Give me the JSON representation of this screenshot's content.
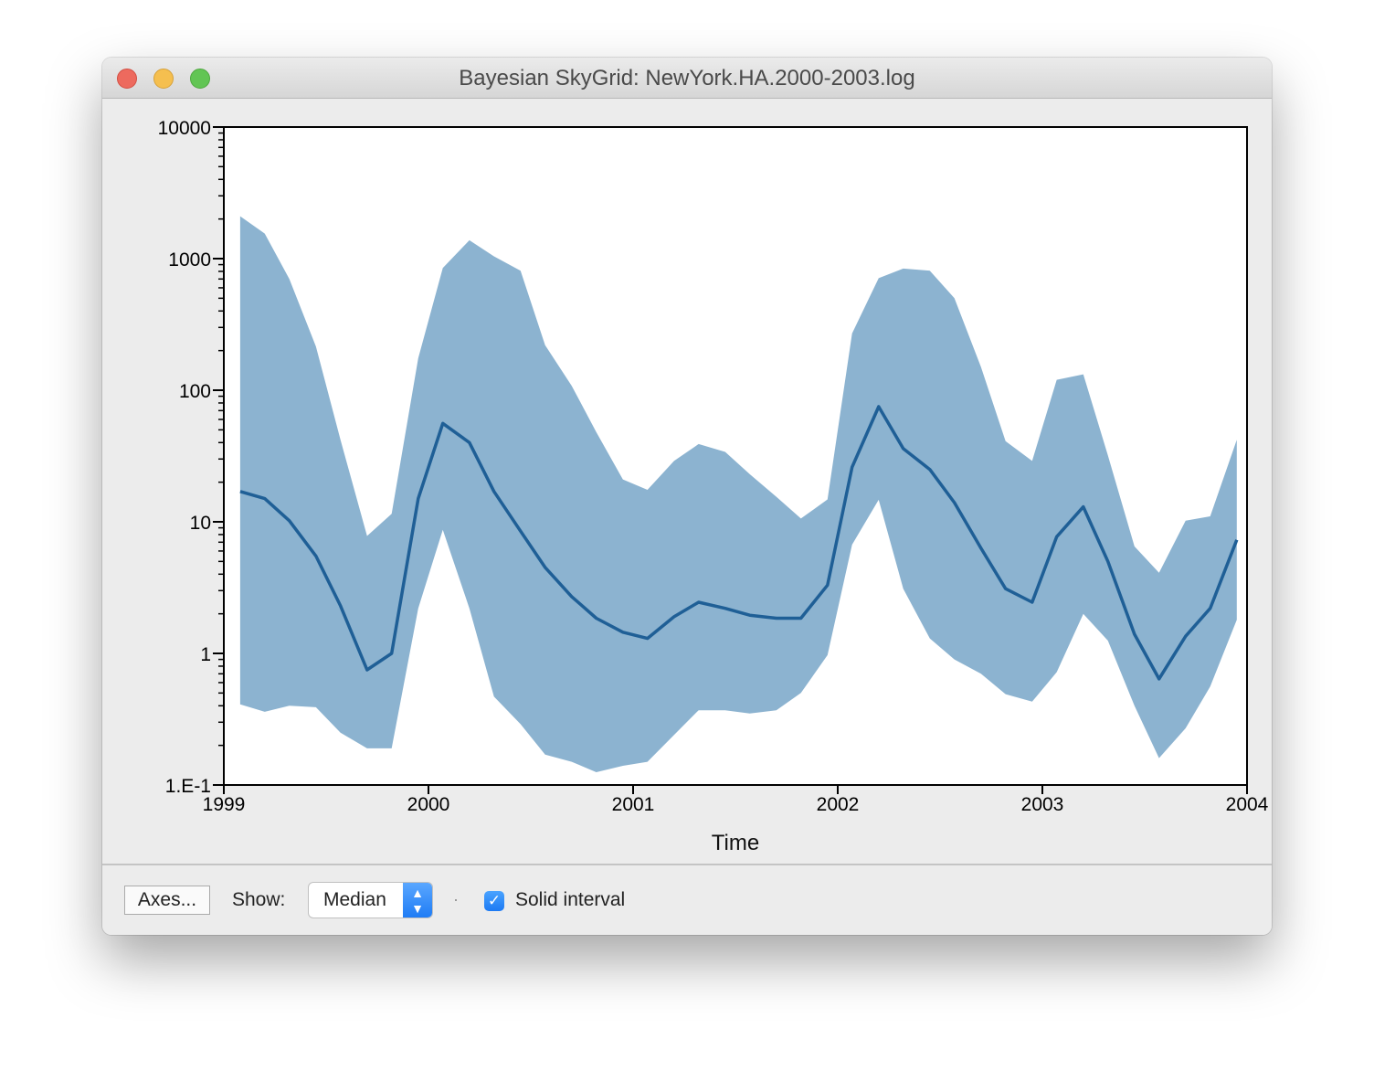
{
  "window": {
    "title": "Bayesian SkyGrid: NewYork.HA.2000-2003.log"
  },
  "controls": {
    "axes_button": "Axes...",
    "show_label": "Show:",
    "show_value": "Median",
    "solid_interval_label": "Solid interval",
    "solid_interval_checked": true
  },
  "chart_data": {
    "type": "area",
    "title": "",
    "xlabel": "Time",
    "ylabel": "",
    "xlim": [
      1999,
      2004
    ],
    "ylim": [
      0.1,
      10000
    ],
    "yscale": "log",
    "x_ticks": [
      "1999",
      "2000",
      "2001",
      "2002",
      "2003",
      "2004"
    ],
    "y_ticks": [
      "1.E-1",
      "1",
      "10",
      "100",
      "1000",
      "10000"
    ],
    "grid": false,
    "legend": "none",
    "band_color": "#8cb3d0",
    "line_color": "#1f5f96",
    "x": [
      1999.08,
      1999.2,
      1999.32,
      1999.45,
      1999.57,
      1999.7,
      1999.82,
      1999.95,
      2000.07,
      2000.2,
      2000.32,
      2000.45,
      2000.57,
      2000.7,
      2000.82,
      2000.95,
      2001.07,
      2001.2,
      2001.32,
      2001.45,
      2001.57,
      2001.7,
      2001.82,
      2001.95,
      2002.07,
      2002.2,
      2002.32,
      2002.45,
      2002.57,
      2002.7,
      2002.82,
      2002.95,
      2003.07,
      2003.2,
      2003.32,
      2003.45,
      2003.57,
      2003.7,
      2003.82,
      2003.95
    ],
    "series": [
      {
        "name": "Median",
        "values": [
          17,
          15,
          10.2,
          5.5,
          2.3,
          0.75,
          1.0,
          15,
          56,
          40,
          17,
          8.5,
          4.5,
          2.7,
          1.85,
          1.45,
          1.3,
          1.9,
          2.45,
          2.2,
          1.95,
          1.85,
          1.85,
          3.3,
          26,
          75,
          36,
          25,
          14,
          6.3,
          3.1,
          2.45,
          7.7,
          13,
          5.0,
          1.4,
          0.64,
          1.35,
          2.2,
          7.3
        ]
      },
      {
        "name": "Upper",
        "values": [
          2100,
          1550,
          700,
          215,
          42,
          7.8,
          11.5,
          175,
          850,
          1380,
          1040,
          810,
          220,
          108,
          48,
          21,
          17.5,
          29,
          39,
          34,
          23,
          15.5,
          10.6,
          14.8,
          270,
          710,
          840,
          810,
          500,
          150,
          41,
          29,
          120,
          132,
          32,
          6.5,
          4.1,
          10.2,
          11,
          42
        ]
      },
      {
        "name": "Lower",
        "values": [
          0.41,
          0.36,
          0.4,
          0.39,
          0.25,
          0.19,
          0.19,
          2.2,
          8.7,
          2.2,
          0.47,
          0.29,
          0.17,
          0.15,
          0.125,
          0.14,
          0.15,
          0.24,
          0.37,
          0.37,
          0.35,
          0.37,
          0.5,
          0.97,
          6.7,
          14.7,
          3.1,
          1.3,
          0.9,
          0.7,
          0.49,
          0.43,
          0.72,
          2.0,
          1.25,
          0.4,
          0.16,
          0.27,
          0.56,
          1.8
        ]
      }
    ]
  }
}
